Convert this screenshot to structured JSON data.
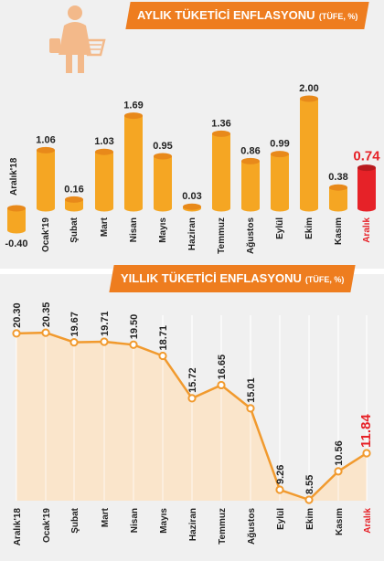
{
  "colors": {
    "orange": "#f5a623",
    "orange_dark": "#e8891a",
    "red": "#e62228",
    "banner": "#ee7d1f",
    "panel_bg": "#f0f0f0",
    "area_fill": "#fbe3c4",
    "line": "#f19a2e",
    "marker": "#ffffff"
  },
  "icons": [
    "shopping-woman-icon"
  ],
  "monthly": {
    "title": "AYLIK TÜKETİCİ ENFLASYONU",
    "unit": "(TÜFE, %)"
  },
  "annual": {
    "title": "YILLIK TÜKETİCİ ENFLASYONU",
    "unit": "(TÜFE, %)"
  },
  "chart_data": [
    {
      "type": "bar",
      "title": "AYLIK TÜKETİCİ ENFLASYONU",
      "subtitle": "(TÜFE, %)",
      "categories": [
        "Aralık'18",
        "Ocak'19",
        "Şubat",
        "Mart",
        "Nisan",
        "Mayıs",
        "Haziran",
        "Temmuz",
        "Ağustos",
        "Eylül",
        "Ekim",
        "Kasım",
        "Aralık"
      ],
      "values": [
        -0.4,
        1.06,
        0.16,
        1.03,
        1.69,
        0.95,
        0.03,
        1.36,
        0.86,
        0.99,
        2.0,
        0.38,
        0.74
      ],
      "labels": [
        "-0.40",
        "1.06",
        "0.16",
        "1.03",
        "1.69",
        "0.95",
        "0.03",
        "1.36",
        "0.86",
        "0.99",
        "2.00",
        "0.38",
        "0.74"
      ],
      "highlight_index": 12,
      "ylim": [
        -0.4,
        2.0
      ],
      "grid": false
    },
    {
      "type": "area",
      "title": "YILLIK TÜKETİCİ ENFLASYONU",
      "subtitle": "(TÜFE, %)",
      "categories": [
        "Aralık'18",
        "Ocak'19",
        "Şubat",
        "Mart",
        "Nisan",
        "Mayıs",
        "Haziran",
        "Temmuz",
        "Ağustos",
        "Eylül",
        "Ekim",
        "Kasım",
        "Aralık"
      ],
      "values": [
        20.3,
        20.35,
        19.67,
        19.71,
        19.5,
        18.71,
        15.72,
        16.65,
        15.01,
        9.26,
        8.55,
        10.56,
        11.84
      ],
      "labels": [
        "20.30",
        "20.35",
        "19.67",
        "19.71",
        "19.50",
        "18.71",
        "15.72",
        "16.65",
        "15.01",
        "9.26",
        "8.55",
        "10.56",
        "11.84"
      ],
      "highlight_index": 12,
      "grid": true
    }
  ]
}
